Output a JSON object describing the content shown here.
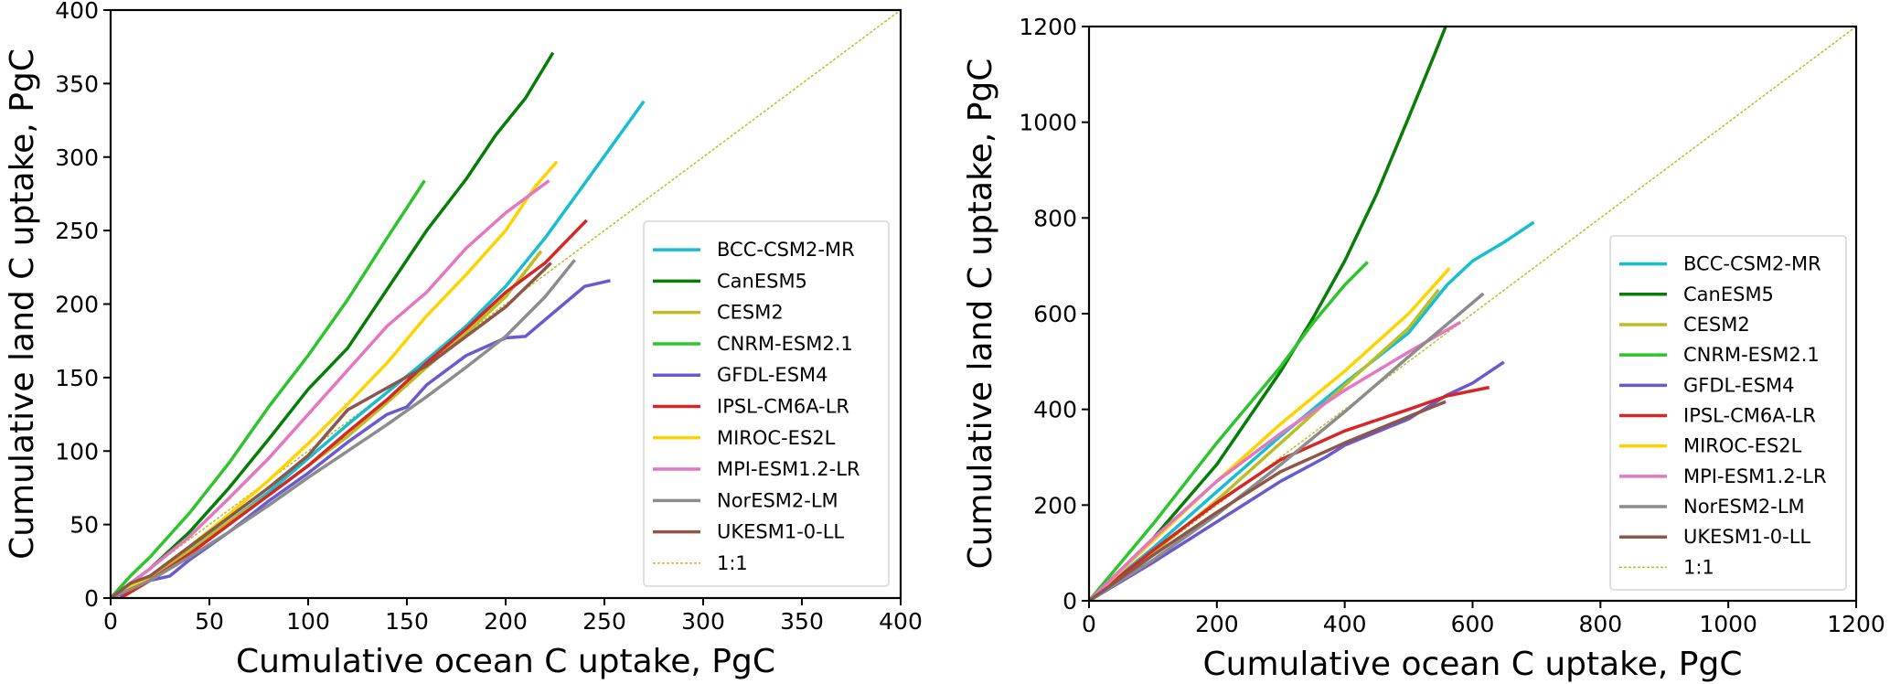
{
  "chart_data": [
    {
      "type": "line",
      "panel": "left",
      "title": "",
      "xlabel": "Cumulative ocean C uptake, PgC",
      "ylabel": "Cumulative land C uptake, PgC",
      "xlim": [
        0,
        400
      ],
      "ylim": [
        0,
        400
      ],
      "xticks": [
        "0",
        "50",
        "100",
        "150",
        "200",
        "250",
        "300",
        "350",
        "400"
      ],
      "yticks": [
        "0",
        "50",
        "100",
        "150",
        "200",
        "250",
        "300",
        "350",
        "400"
      ],
      "grid": false,
      "legend_position": "center-right",
      "series": [
        {
          "name": "BCC-CSM2-MR",
          "color": "#17becf",
          "points": [
            [
              0,
              0
            ],
            [
              20,
              15
            ],
            [
              40,
              33
            ],
            [
              60,
              52
            ],
            [
              80,
              72
            ],
            [
              100,
              95
            ],
            [
              120,
              118
            ],
            [
              140,
              140
            ],
            [
              160,
              162
            ],
            [
              180,
              185
            ],
            [
              200,
              212
            ],
            [
              220,
              245
            ],
            [
              240,
              282
            ],
            [
              255,
              310
            ],
            [
              270,
              338
            ]
          ]
        },
        {
          "name": "CanESM5",
          "color": "#067d06",
          "points": [
            [
              0,
              0
            ],
            [
              20,
              20
            ],
            [
              40,
              45
            ],
            [
              60,
              75
            ],
            [
              80,
              108
            ],
            [
              100,
              142
            ],
            [
              120,
              170
            ],
            [
              140,
              210
            ],
            [
              160,
              250
            ],
            [
              180,
              285
            ],
            [
              195,
              315
            ],
            [
              210,
              340
            ],
            [
              224,
              371
            ]
          ]
        },
        {
          "name": "CESM2",
          "color": "#bcbd22",
          "points": [
            [
              0,
              0
            ],
            [
              20,
              14
            ],
            [
              40,
              32
            ],
            [
              60,
              52
            ],
            [
              80,
              70
            ],
            [
              100,
              90
            ],
            [
              120,
              110
            ],
            [
              140,
              133
            ],
            [
              160,
              157
            ],
            [
              180,
              180
            ],
            [
              200,
              205
            ],
            [
              218,
              236
            ]
          ]
        },
        {
          "name": "CNRM-ESM2.1",
          "color": "#2dc42d",
          "points": [
            [
              0,
              0
            ],
            [
              10,
              15
            ],
            [
              20,
              28
            ],
            [
              40,
              58
            ],
            [
              60,
              92
            ],
            [
              80,
              130
            ],
            [
              100,
              165
            ],
            [
              120,
              203
            ],
            [
              140,
              245
            ],
            [
              159,
              284
            ]
          ]
        },
        {
          "name": "GFDL-ESM4",
          "color": "#6a5acd",
          "points": [
            [
              0,
              0
            ],
            [
              10,
              5
            ],
            [
              20,
              12
            ],
            [
              30,
              15
            ],
            [
              40,
              26
            ],
            [
              60,
              45
            ],
            [
              80,
              66
            ],
            [
              100,
              85
            ],
            [
              120,
              106
            ],
            [
              140,
              125
            ],
            [
              150,
              130
            ],
            [
              160,
              145
            ],
            [
              180,
              165
            ],
            [
              200,
              177
            ],
            [
              210,
              178
            ],
            [
              225,
              195
            ],
            [
              240,
              212
            ],
            [
              253,
              216
            ]
          ]
        },
        {
          "name": "IPSL-CM6A-LR",
          "color": "#d62728",
          "points": [
            [
              5,
              0
            ],
            [
              20,
              12
            ],
            [
              40,
              30
            ],
            [
              60,
              50
            ],
            [
              80,
              70
            ],
            [
              100,
              90
            ],
            [
              120,
              113
            ],
            [
              140,
              135
            ],
            [
              160,
              160
            ],
            [
              180,
              183
            ],
            [
              200,
              208
            ],
            [
              220,
              228
            ],
            [
              241,
              257
            ]
          ]
        },
        {
          "name": "MIROC-ES2L",
          "color": "#ffd300",
          "points": [
            [
              0,
              0
            ],
            [
              20,
              15
            ],
            [
              40,
              35
            ],
            [
              60,
              57
            ],
            [
              80,
              80
            ],
            [
              100,
              105
            ],
            [
              120,
              132
            ],
            [
              140,
              160
            ],
            [
              160,
              192
            ],
            [
              180,
              220
            ],
            [
              200,
              250
            ],
            [
              215,
              280
            ],
            [
              226,
              297
            ]
          ]
        },
        {
          "name": "MPI-ESM1.2-LR",
          "color": "#e377c2",
          "points": [
            [
              0,
              0
            ],
            [
              20,
              20
            ],
            [
              40,
              42
            ],
            [
              60,
              68
            ],
            [
              80,
              95
            ],
            [
              100,
              125
            ],
            [
              120,
              155
            ],
            [
              140,
              185
            ],
            [
              160,
              208
            ],
            [
              180,
              238
            ],
            [
              200,
              262
            ],
            [
              222,
              284
            ]
          ]
        },
        {
          "name": "NorESM2-LM",
          "color": "#8c8c8c",
          "points": [
            [
              0,
              0
            ],
            [
              20,
              12
            ],
            [
              40,
              28
            ],
            [
              60,
              45
            ],
            [
              80,
              63
            ],
            [
              100,
              82
            ],
            [
              120,
              100
            ],
            [
              140,
              118
            ],
            [
              160,
              137
            ],
            [
              180,
              157
            ],
            [
              200,
              178
            ],
            [
              220,
              205
            ],
            [
              235,
              230
            ]
          ]
        },
        {
          "name": "UKESM1-0-LL",
          "color": "#8c564b",
          "points": [
            [
              0,
              0
            ],
            [
              10,
              10
            ],
            [
              20,
              15
            ],
            [
              40,
              35
            ],
            [
              60,
              55
            ],
            [
              80,
              75
            ],
            [
              100,
              97
            ],
            [
              120,
              128
            ],
            [
              140,
              143
            ],
            [
              160,
              158
            ],
            [
              180,
              178
            ],
            [
              200,
              198
            ],
            [
              223,
              228
            ]
          ]
        }
      ],
      "reference_line": {
        "name": "1:1",
        "color": "#bcbd22",
        "style": "dotted",
        "points": [
          [
            0,
            0
          ],
          [
            400,
            400
          ]
        ]
      },
      "legend": [
        "BCC-CSM2-MR",
        "CanESM5",
        "CESM2",
        "CNRM-ESM2.1",
        "GFDL-ESM4",
        "IPSL-CM6A-LR",
        "MIROC-ES2L",
        "MPI-ESM1.2-LR",
        "NorESM2-LM",
        "UKESM1-0-LL",
        "1:1"
      ]
    },
    {
      "type": "line",
      "panel": "right",
      "title": "",
      "xlabel": "Cumulative ocean C uptake, PgC",
      "ylabel": "Cumulative land C uptake, PgC",
      "xlim": [
        0,
        1200
      ],
      "ylim": [
        0,
        1200
      ],
      "xticks": [
        "0",
        "200",
        "400",
        "600",
        "800",
        "1000",
        "1200"
      ],
      "yticks": [
        "0",
        "200",
        "400",
        "600",
        "800",
        "1000",
        "1200"
      ],
      "grid": false,
      "legend_position": "center-right",
      "series": [
        {
          "name": "BCC-CSM2-MR",
          "color": "#17becf",
          "points": [
            [
              0,
              0
            ],
            [
              100,
              110
            ],
            [
              200,
              228
            ],
            [
              300,
              345
            ],
            [
              400,
              455
            ],
            [
              500,
              560
            ],
            [
              560,
              660
            ],
            [
              600,
              710
            ],
            [
              650,
              750
            ],
            [
              696,
              791
            ]
          ]
        },
        {
          "name": "CanESM5",
          "color": "#067d06",
          "points": [
            [
              0,
              0
            ],
            [
              100,
              130
            ],
            [
              200,
              285
            ],
            [
              300,
              480
            ],
            [
              350,
              590
            ],
            [
              400,
              710
            ],
            [
              450,
              850
            ],
            [
              500,
              1010
            ],
            [
              540,
              1140
            ],
            [
              558,
              1200
            ]
          ]
        },
        {
          "name": "CESM2",
          "color": "#bcbd22",
          "points": [
            [
              0,
              0
            ],
            [
              100,
              100
            ],
            [
              200,
              210
            ],
            [
              300,
              330
            ],
            [
              400,
              450
            ],
            [
              500,
              570
            ],
            [
              547,
              650
            ]
          ]
        },
        {
          "name": "CNRM-ESM2.1",
          "color": "#2dc42d",
          "points": [
            [
              0,
              0
            ],
            [
              100,
              160
            ],
            [
              200,
              330
            ],
            [
              300,
              490
            ],
            [
              350,
              580
            ],
            [
              400,
              660
            ],
            [
              436,
              708
            ]
          ]
        },
        {
          "name": "GFDL-ESM4",
          "color": "#6a5acd",
          "points": [
            [
              0,
              0
            ],
            [
              100,
              80
            ],
            [
              200,
              165
            ],
            [
              300,
              250
            ],
            [
              370,
              300
            ],
            [
              400,
              325
            ],
            [
              500,
              380
            ],
            [
              560,
              430
            ],
            [
              600,
              455
            ],
            [
              649,
              499
            ]
          ]
        },
        {
          "name": "IPSL-CM6A-LR",
          "color": "#d62728",
          "points": [
            [
              0,
              0
            ],
            [
              100,
              105
            ],
            [
              200,
              205
            ],
            [
              300,
              295
            ],
            [
              400,
              355
            ],
            [
              500,
              400
            ],
            [
              560,
              428
            ],
            [
              626,
              446
            ]
          ]
        },
        {
          "name": "MIROC-ES2L",
          "color": "#ffd300",
          "points": [
            [
              0,
              0
            ],
            [
              100,
              125
            ],
            [
              200,
              250
            ],
            [
              300,
              370
            ],
            [
              400,
              480
            ],
            [
              500,
              600
            ],
            [
              564,
              695
            ]
          ]
        },
        {
          "name": "MPI-ESM1.2-LR",
          "color": "#e377c2",
          "points": [
            [
              0,
              0
            ],
            [
              100,
              130
            ],
            [
              200,
              250
            ],
            [
              300,
              350
            ],
            [
              400,
              440
            ],
            [
              500,
              520
            ],
            [
              581,
              582
            ]
          ]
        },
        {
          "name": "NorESM2-LM",
          "color": "#8c8c8c",
          "points": [
            [
              0,
              0
            ],
            [
              100,
              85
            ],
            [
              200,
              180
            ],
            [
              300,
              285
            ],
            [
              400,
              395
            ],
            [
              500,
              510
            ],
            [
              617,
              642
            ]
          ]
        },
        {
          "name": "UKESM1-0-LL",
          "color": "#8c564b",
          "points": [
            [
              0,
              0
            ],
            [
              100,
              95
            ],
            [
              200,
              185
            ],
            [
              300,
              270
            ],
            [
              400,
              330
            ],
            [
              500,
              385
            ],
            [
              558,
              416
            ]
          ]
        }
      ],
      "reference_line": {
        "name": "1:1",
        "color": "#bcbd22",
        "style": "dotted",
        "points": [
          [
            0,
            0
          ],
          [
            1200,
            1200
          ]
        ]
      },
      "legend": [
        "BCC-CSM2-MR",
        "CanESM5",
        "CESM2",
        "CNRM-ESM2.1",
        "GFDL-ESM4",
        "IPSL-CM6A-LR",
        "MIROC-ES2L",
        "MPI-ESM1.2-LR",
        "NorESM2-LM",
        "UKESM1-0-LL",
        "1:1"
      ]
    }
  ]
}
